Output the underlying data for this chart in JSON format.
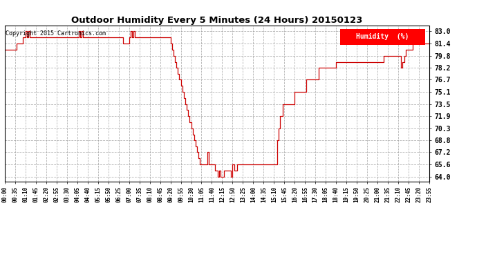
{
  "title": "Outdoor Humidity Every 5 Minutes (24 Hours) 20150123",
  "copyright": "Copyright 2015 Cartronics.com",
  "legend_label": "Humidity  (%)",
  "line_color": "#cc0000",
  "background_color": "#ffffff",
  "grid_color": "#999999",
  "yticks": [
    64.0,
    65.6,
    67.2,
    68.8,
    70.3,
    71.9,
    73.5,
    75.1,
    76.7,
    78.2,
    79.8,
    81.4,
    83.0
  ],
  "ylim": [
    63.4,
    83.7
  ],
  "time_data": [
    "00:00",
    "00:05",
    "00:10",
    "00:15",
    "00:20",
    "00:25",
    "00:30",
    "00:35",
    "00:40",
    "00:45",
    "00:50",
    "00:55",
    "01:00",
    "01:05",
    "01:10",
    "01:15",
    "01:20",
    "01:25",
    "01:30",
    "01:35",
    "01:40",
    "01:45",
    "01:50",
    "01:55",
    "02:00",
    "02:05",
    "02:10",
    "02:15",
    "02:20",
    "02:25",
    "02:30",
    "02:35",
    "02:40",
    "02:45",
    "02:50",
    "02:55",
    "03:00",
    "03:05",
    "03:10",
    "03:15",
    "03:20",
    "03:25",
    "03:30",
    "03:35",
    "03:40",
    "03:45",
    "03:50",
    "03:55",
    "04:00",
    "04:05",
    "04:10",
    "04:15",
    "04:20",
    "04:25",
    "04:30",
    "04:35",
    "04:40",
    "04:45",
    "04:50",
    "04:55",
    "05:00",
    "05:05",
    "05:10",
    "05:15",
    "05:20",
    "05:25",
    "05:30",
    "05:35",
    "05:40",
    "05:45",
    "05:50",
    "05:55",
    "06:00",
    "06:05",
    "06:10",
    "06:15",
    "06:20",
    "06:25",
    "06:30",
    "06:35",
    "06:40",
    "06:45",
    "06:50",
    "06:55",
    "07:00",
    "07:05",
    "07:10",
    "07:15",
    "07:20",
    "07:25",
    "07:30",
    "07:35",
    "07:40",
    "07:45",
    "07:50",
    "07:55",
    "08:00",
    "08:05",
    "08:10",
    "08:15",
    "08:20",
    "08:25",
    "08:30",
    "08:35",
    "08:40",
    "08:45",
    "08:50",
    "08:55",
    "09:00",
    "09:05",
    "09:10",
    "09:15",
    "09:20",
    "09:25",
    "09:30",
    "09:35",
    "09:40",
    "09:45",
    "09:50",
    "09:55",
    "10:00",
    "10:05",
    "10:10",
    "10:15",
    "10:20",
    "10:25",
    "10:30",
    "10:35",
    "10:40",
    "10:45",
    "10:50",
    "10:55",
    "11:00",
    "11:05",
    "11:10",
    "11:15",
    "11:20",
    "11:25",
    "11:30",
    "11:35",
    "11:40",
    "11:45",
    "11:50",
    "11:55",
    "12:00",
    "12:05",
    "12:10",
    "12:15",
    "12:20",
    "12:25",
    "12:30",
    "12:35",
    "12:40",
    "12:45",
    "12:50",
    "12:55",
    "13:00",
    "13:05",
    "13:10",
    "13:15",
    "13:20",
    "13:25",
    "13:30",
    "13:35",
    "13:40",
    "13:45",
    "13:50",
    "13:55",
    "14:00",
    "14:05",
    "14:10",
    "14:15",
    "14:20",
    "14:25",
    "14:30",
    "14:35",
    "14:40",
    "14:45",
    "14:50",
    "14:55",
    "15:00",
    "15:05",
    "15:10",
    "15:15",
    "15:20",
    "15:25",
    "15:30",
    "15:35",
    "15:40",
    "15:45",
    "15:50",
    "15:55",
    "16:00",
    "16:05",
    "16:10",
    "16:15",
    "16:20",
    "16:25",
    "16:30",
    "16:35",
    "16:40",
    "16:45",
    "16:50",
    "16:55",
    "17:00",
    "17:05",
    "17:10",
    "17:15",
    "17:20",
    "17:25",
    "17:30",
    "17:35",
    "17:40",
    "17:45",
    "17:50",
    "17:55",
    "18:00",
    "18:05",
    "18:10",
    "18:15",
    "18:20",
    "18:25",
    "18:30",
    "18:35",
    "18:40",
    "18:45",
    "18:50",
    "18:55",
    "19:00",
    "19:05",
    "19:10",
    "19:15",
    "19:20",
    "19:25",
    "19:30",
    "19:35",
    "19:40",
    "19:45",
    "19:50",
    "19:55",
    "20:00",
    "20:05",
    "20:10",
    "20:15",
    "20:20",
    "20:25",
    "20:30",
    "20:35",
    "20:40",
    "20:45",
    "20:50",
    "20:55",
    "21:00",
    "21:05",
    "21:10",
    "21:15",
    "21:20",
    "21:25",
    "21:30",
    "21:35",
    "21:40",
    "21:45",
    "21:50",
    "21:55",
    "22:00",
    "22:05",
    "22:10",
    "22:15",
    "22:20",
    "22:25",
    "22:30",
    "22:35",
    "22:40",
    "22:45",
    "22:50",
    "22:55",
    "23:00",
    "23:05",
    "23:10",
    "23:15",
    "23:20",
    "23:25",
    "23:30",
    "23:35",
    "23:40",
    "23:45",
    "23:50",
    "23:55"
  ],
  "humidity_values": [
    80.6,
    80.6,
    80.6,
    80.6,
    80.6,
    80.6,
    80.6,
    80.6,
    81.4,
    81.4,
    81.4,
    81.4,
    82.2,
    82.2,
    83.0,
    82.2,
    83.0,
    82.2,
    82.2,
    82.2,
    82.2,
    82.2,
    82.2,
    82.2,
    82.2,
    82.2,
    82.2,
    82.2,
    82.2,
    82.2,
    82.2,
    82.2,
    82.2,
    82.2,
    82.2,
    82.2,
    82.2,
    82.2,
    82.2,
    82.2,
    82.2,
    82.2,
    82.2,
    82.2,
    82.2,
    82.2,
    82.2,
    82.2,
    82.2,
    82.2,
    83.0,
    82.2,
    83.0,
    82.2,
    82.2,
    82.2,
    82.2,
    82.2,
    82.2,
    82.2,
    82.2,
    82.2,
    82.2,
    82.2,
    82.2,
    82.2,
    82.2,
    82.2,
    82.2,
    82.2,
    82.2,
    82.2,
    82.2,
    82.2,
    82.2,
    82.2,
    82.2,
    82.2,
    82.2,
    82.2,
    81.4,
    81.4,
    81.4,
    81.4,
    82.2,
    83.0,
    82.2,
    83.0,
    82.2,
    82.2,
    82.2,
    82.2,
    82.2,
    82.2,
    82.2,
    82.2,
    82.2,
    82.2,
    82.2,
    82.2,
    82.2,
    82.2,
    82.2,
    82.2,
    82.2,
    82.2,
    82.2,
    82.2,
    82.2,
    82.2,
    82.2,
    82.2,
    81.4,
    80.6,
    79.8,
    79.0,
    78.2,
    77.4,
    76.7,
    75.9,
    75.1,
    74.3,
    73.5,
    72.7,
    71.9,
    71.1,
    70.3,
    69.5,
    68.8,
    68.0,
    67.2,
    66.4,
    65.6,
    65.6,
    65.6,
    65.6,
    65.6,
    67.2,
    65.6,
    65.6,
    65.6,
    65.6,
    64.8,
    64.8,
    64.0,
    64.8,
    64.0,
    64.0,
    64.8,
    64.8,
    64.8,
    64.8,
    64.8,
    64.0,
    65.6,
    64.8,
    64.8,
    65.6,
    65.6,
    65.6,
    65.6,
    65.6,
    65.6,
    65.6,
    65.6,
    65.6,
    65.6,
    65.6,
    65.6,
    65.6,
    65.6,
    65.6,
    65.6,
    65.6,
    65.6,
    65.6,
    65.6,
    65.6,
    65.6,
    65.6,
    65.6,
    65.6,
    65.6,
    65.6,
    68.8,
    70.3,
    71.9,
    71.9,
    73.5,
    73.5,
    73.5,
    73.5,
    73.5,
    73.5,
    73.5,
    73.5,
    75.1,
    75.1,
    75.1,
    75.1,
    75.1,
    75.1,
    75.1,
    75.1,
    76.7,
    76.7,
    76.7,
    76.7,
    76.7,
    76.7,
    76.7,
    76.7,
    78.2,
    78.2,
    78.2,
    78.2,
    78.2,
    78.2,
    78.2,
    78.2,
    78.2,
    78.2,
    78.2,
    78.2,
    79.0,
    79.0,
    79.0,
    79.0,
    79.0,
    79.0,
    79.0,
    79.0,
    79.0,
    79.0,
    79.0,
    79.0,
    79.0,
    79.0,
    79.0,
    79.0,
    79.0,
    79.0,
    79.0,
    79.0,
    79.0,
    79.0,
    79.0,
    79.0,
    79.0,
    79.0,
    79.0,
    79.0,
    79.0,
    79.0,
    79.0,
    79.0,
    79.8,
    79.8,
    79.8,
    79.8,
    79.8,
    79.8,
    79.8,
    79.8,
    79.8,
    79.8,
    79.8,
    79.8,
    78.2,
    79.0,
    79.8,
    80.6,
    80.6,
    80.6,
    80.6,
    80.6,
    81.4,
    81.4,
    81.4,
    81.4,
    81.4,
    81.4,
    81.4,
    81.4,
    81.4,
    81.4,
    81.4,
    81.4
  ]
}
